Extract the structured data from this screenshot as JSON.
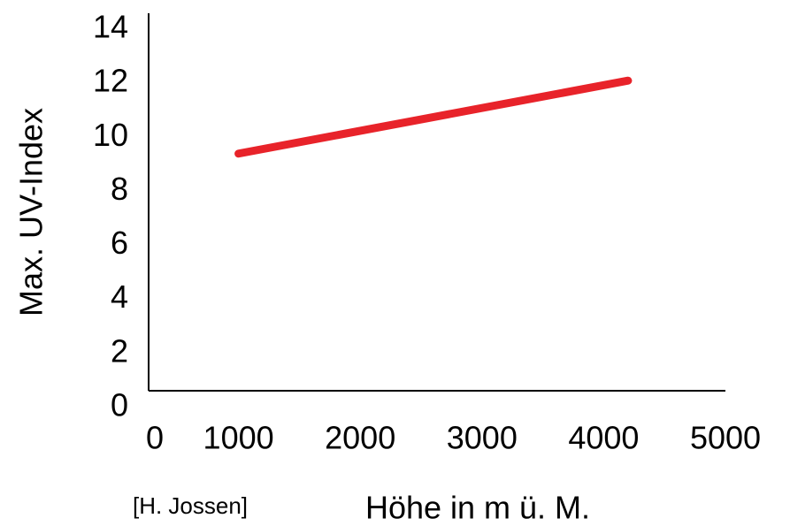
{
  "chart_data": {
    "type": "line",
    "x_label": "Höhe in m ü. M.",
    "y_label": "Max. UV-Index",
    "source": "[H. Jossen]",
    "series": [
      {
        "name": "UV-Index",
        "color": "#e8232a",
        "x": [
          1000,
          4200
        ],
        "values": [
          9.2,
          11.9
        ]
      }
    ],
    "xlim": [
      0,
      5000
    ],
    "xticks": [
      0,
      1000,
      2000,
      3000,
      4000,
      5000
    ],
    "ylim": [
      0,
      14
    ],
    "yticks": [
      0,
      2,
      4,
      6,
      8,
      10,
      12,
      14
    ],
    "grid": false
  }
}
